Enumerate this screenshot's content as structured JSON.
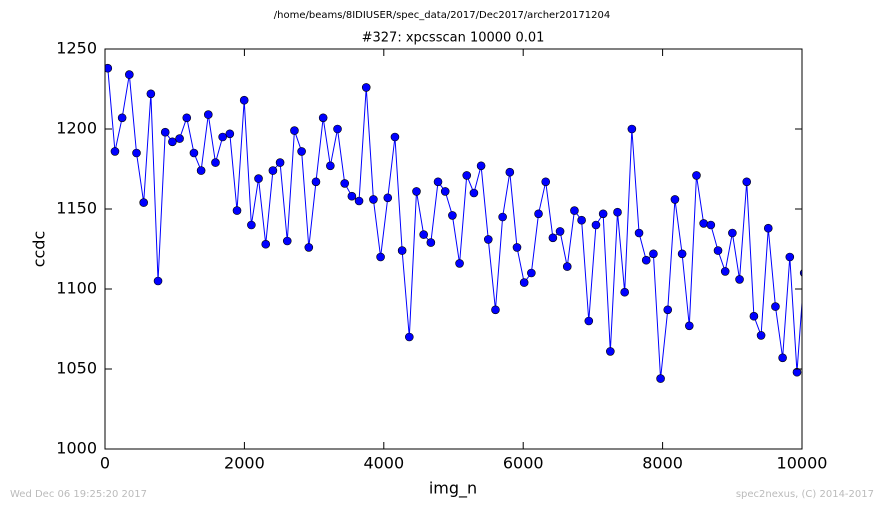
{
  "chart_data": {
    "type": "line",
    "header": "/home/beams/8IDIUSER/spec_data/2017/Dec2017/archer20171204",
    "title": "#327: xpcsscan 10000 0.01",
    "xlabel": "img_n",
    "ylabel": "ccdc",
    "footer_left": "Wed Dec 06 19:25:20 2017",
    "footer_right": "spec2nexus, (C) 2014-2017",
    "xlim": [
      0,
      10000
    ],
    "xticks": [
      0,
      2000,
      4000,
      6000,
      8000,
      10000
    ],
    "ylim": [
      1000,
      1250
    ],
    "yticks": [
      1000,
      1050,
      1100,
      1150,
      1200,
      1250
    ],
    "x": [
      40,
      143,
      246,
      349,
      452,
      555,
      658,
      761,
      864,
      967,
      1070,
      1173,
      1276,
      1379,
      1482,
      1585,
      1688,
      1791,
      1894,
      1997,
      2100,
      2203,
      2306,
      2409,
      2512,
      2615,
      2718,
      2821,
      2924,
      3027,
      3130,
      3233,
      3336,
      3439,
      3542,
      3645,
      3748,
      3851,
      3954,
      4057,
      4160,
      4263,
      4366,
      4469,
      4572,
      4675,
      4778,
      4881,
      4984,
      5087,
      5190,
      5293,
      5396,
      5499,
      5602,
      5705,
      5808,
      5911,
      6014,
      6117,
      6220,
      6323,
      6426,
      6529,
      6632,
      6735,
      6838,
      6941,
      7044,
      7147,
      7250,
      7353,
      7456,
      7559,
      7662,
      7765,
      7868,
      7971,
      8074,
      8177,
      8280,
      8383,
      8486,
      8589,
      8692,
      8795,
      8898,
      9001,
      9104,
      9207,
      9310,
      9413,
      9516,
      9619,
      9722,
      9825,
      9928,
      10031
    ],
    "series": [
      {
        "color": "#0000ff",
        "values": [
          1238,
          1186,
          1207,
          1234,
          1185,
          1154,
          1222,
          1105,
          1198,
          1192,
          1194,
          1207,
          1185,
          1174,
          1209,
          1179,
          1195,
          1197,
          1149,
          1218,
          1140,
          1169,
          1128,
          1174,
          1179,
          1130,
          1199,
          1186,
          1126,
          1167,
          1207,
          1177,
          1200,
          1166,
          1158,
          1155,
          1226,
          1156,
          1120,
          1157,
          1195,
          1124,
          1070,
          1161,
          1134,
          1129,
          1167,
          1161,
          1146,
          1116,
          1171,
          1160,
          1177,
          1131,
          1087,
          1145,
          1173,
          1126,
          1104,
          1110,
          1147,
          1167,
          1132,
          1136,
          1114,
          1149,
          1143,
          1080,
          1140,
          1147,
          1061,
          1148,
          1098,
          1200,
          1135,
          1118,
          1122,
          1044,
          1087,
          1156,
          1122,
          1077,
          1171,
          1141,
          1140,
          1124,
          1111,
          1135,
          1106,
          1167,
          1083,
          1071,
          1138,
          1089,
          1057,
          1120,
          1048,
          1110
        ]
      }
    ]
  }
}
